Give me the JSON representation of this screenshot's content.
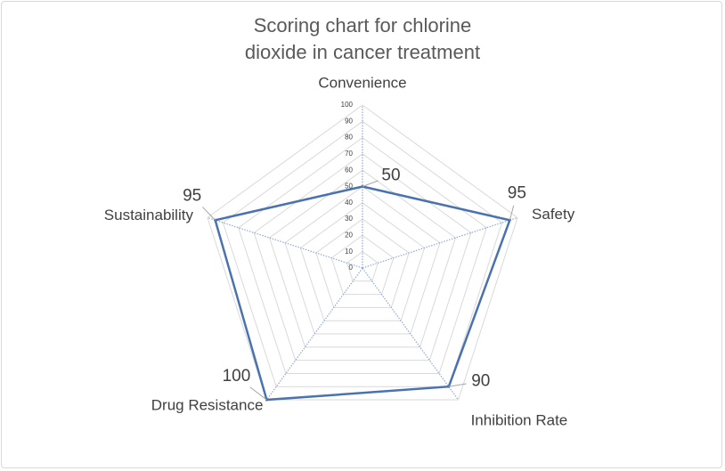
{
  "chart_data": {
    "type": "radar",
    "title": "Scoring chart for chlorine dioxide in cancer treatment",
    "categories": [
      "Convenience",
      "Safety",
      "Inhibition Rate",
      "Drug Resistance",
      "Sustainability"
    ],
    "series": [
      {
        "color": "#4a72b0",
        "values": [
          50,
          95,
          90,
          100,
          95
        ]
      }
    ],
    "ylim": [
      0,
      100
    ],
    "yticks": [
      0,
      10,
      20,
      30,
      40,
      50,
      60,
      70,
      80,
      90,
      100
    ],
    "grid": true
  }
}
